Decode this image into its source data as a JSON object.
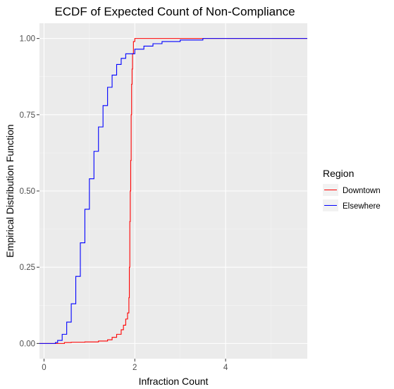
{
  "chart_data": {
    "type": "line",
    "title": "ECDF of Expected Count of Non-Compliance",
    "xlabel": "Infraction Count",
    "ylabel": "Empirical Distribution Function",
    "xlim": [
      -0.1,
      5.8
    ],
    "ylim": [
      -0.05,
      1.05
    ],
    "x_ticks": [
      0,
      2,
      4
    ],
    "x_tick_labels": [
      "0",
      "2",
      "4"
    ],
    "y_ticks": [
      0,
      0.25,
      0.5,
      0.75,
      1
    ],
    "y_tick_labels": [
      "0.00",
      "0.25",
      "0.50",
      "0.75",
      "1.00"
    ],
    "grid": true,
    "legend": {
      "title": "Region",
      "position": "right"
    },
    "series": [
      {
        "name": "Downtown",
        "color": "#ff0000",
        "points": [
          [
            -0.1,
            0.0
          ],
          [
            0.3,
            0.0
          ],
          [
            0.45,
            0.003
          ],
          [
            0.6,
            0.004
          ],
          [
            0.9,
            0.005
          ],
          [
            1.2,
            0.008
          ],
          [
            1.4,
            0.012
          ],
          [
            1.5,
            0.02
          ],
          [
            1.6,
            0.03
          ],
          [
            1.7,
            0.045
          ],
          [
            1.75,
            0.06
          ],
          [
            1.8,
            0.08
          ],
          [
            1.84,
            0.1
          ],
          [
            1.87,
            0.15
          ],
          [
            1.88,
            0.25
          ],
          [
            1.89,
            0.4
          ],
          [
            1.9,
            0.5
          ],
          [
            1.91,
            0.6
          ],
          [
            1.92,
            0.75
          ],
          [
            1.93,
            0.85
          ],
          [
            1.94,
            0.9
          ],
          [
            1.95,
            0.95
          ],
          [
            1.97,
            0.99
          ],
          [
            2.0,
            1.0
          ],
          [
            5.8,
            1.0
          ]
        ]
      },
      {
        "name": "Elsewhere",
        "color": "#0000ff",
        "points": [
          [
            -0.1,
            0.0
          ],
          [
            0.2,
            0.0
          ],
          [
            0.25,
            0.003
          ],
          [
            0.3,
            0.01
          ],
          [
            0.4,
            0.03
          ],
          [
            0.5,
            0.07
          ],
          [
            0.6,
            0.13
          ],
          [
            0.7,
            0.22
          ],
          [
            0.8,
            0.33
          ],
          [
            0.9,
            0.44
          ],
          [
            1.0,
            0.54
          ],
          [
            1.1,
            0.63
          ],
          [
            1.2,
            0.71
          ],
          [
            1.3,
            0.78
          ],
          [
            1.4,
            0.84
          ],
          [
            1.5,
            0.88
          ],
          [
            1.6,
            0.915
          ],
          [
            1.7,
            0.935
          ],
          [
            1.8,
            0.95
          ],
          [
            2.0,
            0.965
          ],
          [
            2.2,
            0.975
          ],
          [
            2.4,
            0.983
          ],
          [
            2.6,
            0.99
          ],
          [
            3.0,
            0.995
          ],
          [
            3.5,
            1.0
          ],
          [
            5.8,
            1.0
          ]
        ]
      }
    ]
  }
}
